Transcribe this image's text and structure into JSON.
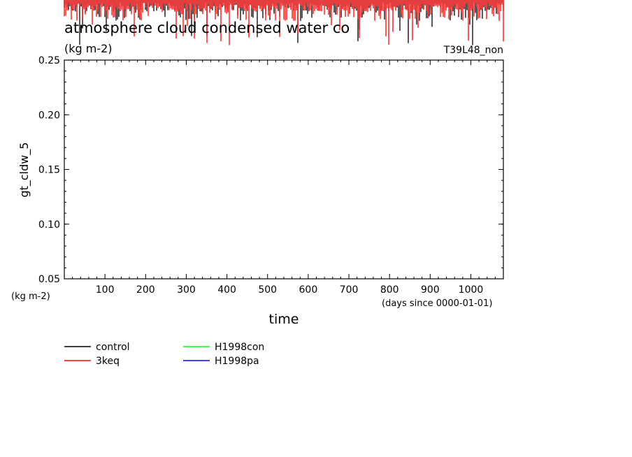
{
  "chart_data": {
    "type": "line",
    "title": "atmosphere cloud condensed water co",
    "title_units": "(kg m-2)",
    "run_label": "T39L48_non",
    "xlabel": "time",
    "x_units": "(days since 0000-01-01)",
    "ylabel": "gt_cldw_5",
    "y_units": "(kg m-2)",
    "xlim": [
      0,
      1080
    ],
    "ylim": [
      0.05,
      0.25
    ],
    "x_ticks": [
      100,
      200,
      300,
      400,
      500,
      600,
      700,
      800,
      900,
      1000
    ],
    "y_ticks": [
      0.05,
      0.1,
      0.15,
      0.2,
      0.25
    ],
    "y_tick_labels": [
      "0.05",
      "0.10",
      "0.15",
      "0.20",
      "0.25"
    ],
    "grid": false,
    "legend_placement": "below",
    "series": [
      {
        "name": "control",
        "color": "#000000",
        "style": "spiky",
        "seed": 7,
        "values": []
      },
      {
        "name": "3keq",
        "color": "#ff0000",
        "style": "spiky",
        "seed": 13,
        "values": []
      },
      {
        "name": "H1998con",
        "color": "#00ff00",
        "values": []
      },
      {
        "name": "H1998pa",
        "color": "#0000ff",
        "values": []
      }
    ],
    "note_values": "series values lie above the plotted y-range (clipped spikes visible only at top)"
  }
}
